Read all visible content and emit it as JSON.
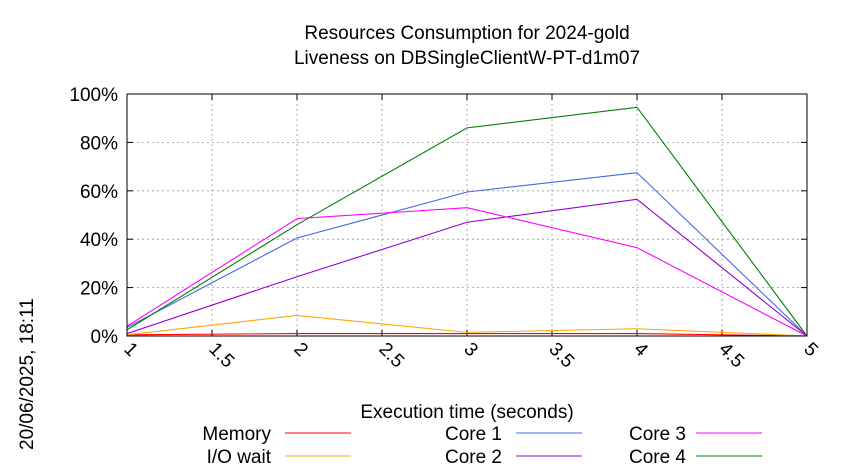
{
  "chart_data": {
    "type": "line",
    "title": [
      "Resources Consumption for 2024-gold",
      "Liveness on DBSingleClientW-PT-d1m07"
    ],
    "xlabel": "Execution time (seconds)",
    "ylabel": "",
    "side_label": "20/06/2025, 18:11",
    "xlim": [
      1,
      5
    ],
    "ylim": [
      0,
      100
    ],
    "x_ticks": [
      "1",
      "1.5",
      "2",
      "2.5",
      "3",
      "3.5",
      "4",
      "4.5",
      "5"
    ],
    "y_ticks": [
      "0%",
      "20%",
      "40%",
      "60%",
      "80%",
      "100%"
    ],
    "grid": true,
    "legend_position": "bottom",
    "x": [
      1,
      2,
      3,
      4,
      5
    ],
    "series": [
      {
        "name": "Memory",
        "color": "#ff0000",
        "values": [
          0.5,
          1,
          1,
          1,
          0
        ]
      },
      {
        "name": "I/O wait",
        "color": "#ffa500",
        "values": [
          0.5,
          8.5,
          1.5,
          3,
          0
        ]
      },
      {
        "name": "Core 1",
        "color": "#4169e1",
        "values": [
          3.5,
          40.5,
          59.5,
          67.5,
          0
        ]
      },
      {
        "name": "Core 2",
        "color": "#9400d3",
        "values": [
          1,
          24.5,
          47,
          56.5,
          0
        ]
      },
      {
        "name": "Core 3",
        "color": "#ff00ff",
        "values": [
          4,
          48.5,
          53,
          36.5,
          0
        ]
      },
      {
        "name": "Core 4",
        "color": "#008000",
        "values": [
          2.5,
          46,
          86,
          94.5,
          0
        ]
      }
    ]
  }
}
